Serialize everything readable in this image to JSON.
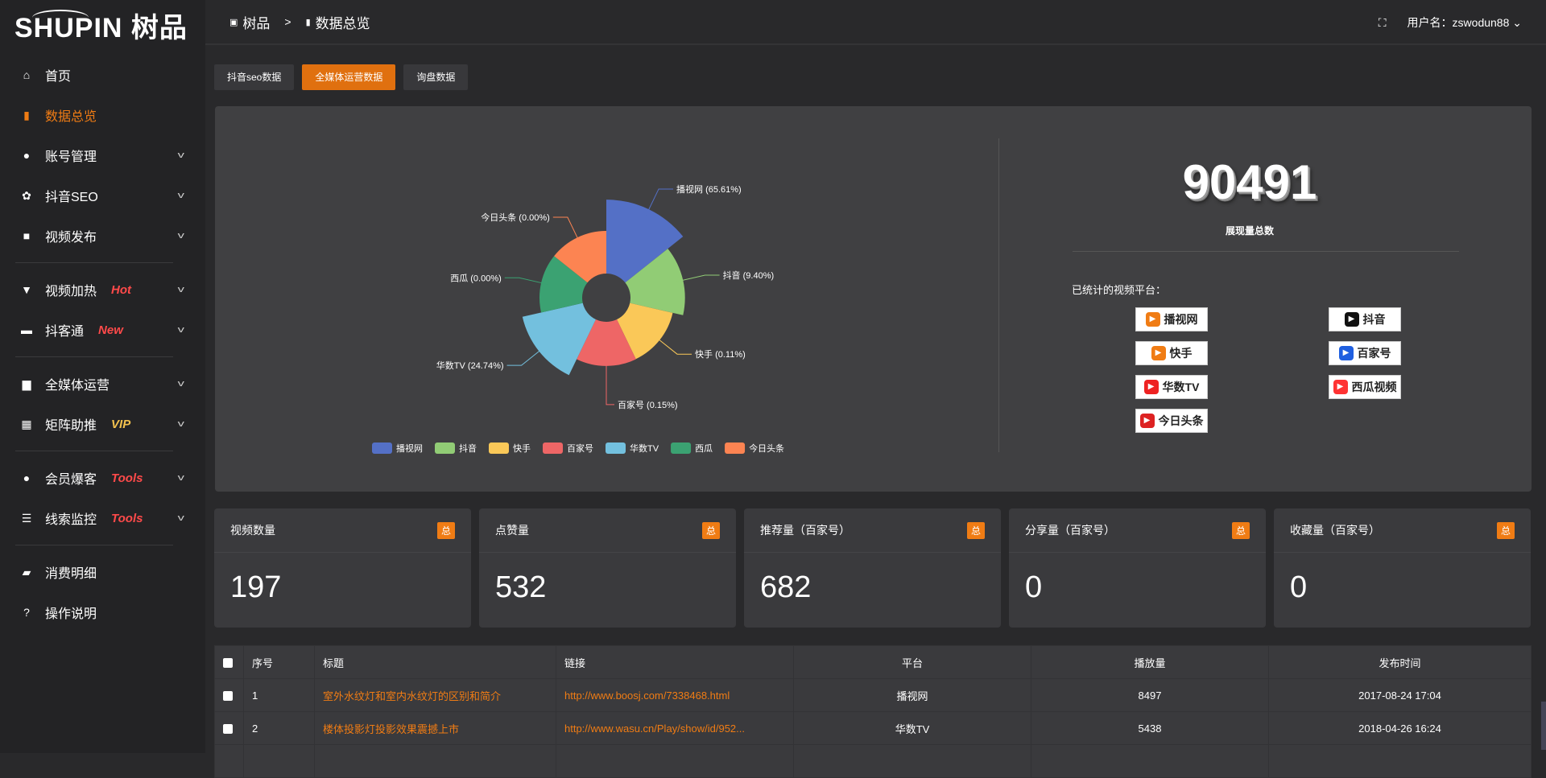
{
  "brand": {
    "logo_text": "SHUPIN 树品"
  },
  "sidebar": {
    "items": [
      {
        "label": "首页",
        "icon": "home-icon",
        "glyph": "⌂"
      },
      {
        "label": "数据总览",
        "icon": "bar-chart-icon",
        "glyph": "▮",
        "active": true
      },
      {
        "label": "账号管理",
        "icon": "user-icon",
        "glyph": "●",
        "chevron": true
      },
      {
        "label": "抖音SEO",
        "icon": "gear-icon",
        "glyph": "✿",
        "chevron": true
      },
      {
        "label": "视频发布",
        "icon": "camera-icon",
        "glyph": "■",
        "chevron": true
      },
      {
        "label": "视频加热",
        "icon": "monitor-icon",
        "glyph": "▼",
        "chevron": true,
        "tag": "Hot"
      },
      {
        "label": "抖客通",
        "icon": "chat-icon",
        "glyph": "▬",
        "chevron": true,
        "tag": "New"
      },
      {
        "label": "全媒体运营",
        "icon": "desktop-icon",
        "glyph": "▆",
        "chevron": true
      },
      {
        "label": "矩阵助推",
        "icon": "grid-icon",
        "glyph": "▦",
        "chevron": true,
        "tag": "VIP"
      },
      {
        "label": "会员爆客",
        "icon": "user-icon",
        "glyph": "●",
        "chevron": true,
        "tag": "Tools"
      },
      {
        "label": "线索监控",
        "icon": "sliders-icon",
        "glyph": "☰",
        "chevron": true,
        "tag": "Tools"
      },
      {
        "label": "消费明细",
        "icon": "wallet-icon",
        "glyph": "▰"
      },
      {
        "label": "操作说明",
        "icon": "help-icon",
        "glyph": "?"
      }
    ]
  },
  "header": {
    "crumbs": [
      "树品",
      "数据总览"
    ],
    "separator": ">",
    "user_label": "用户名：zswodun88"
  },
  "tabs": [
    {
      "label": "抖音seo数据"
    },
    {
      "label": "全媒体运营数据",
      "active": true
    },
    {
      "label": "询盘数据"
    }
  ],
  "overview": {
    "total": "90491",
    "total_label": "展现量总数",
    "platforms_label": "已统计的视频平台：",
    "platform_logos": [
      "播视网",
      "抖音",
      "快手",
      "百家号",
      "华数TV",
      "西瓜视频",
      "今日头条"
    ]
  },
  "chart_data": {
    "type": "pie",
    "rose": true,
    "categories": [
      "播视网",
      "抖音",
      "快手",
      "百家号",
      "华数TV",
      "西瓜",
      "今日头条"
    ],
    "values": [
      65.61,
      9.4,
      0.11,
      0.15,
      24.74,
      0.0,
      0.0
    ],
    "colors": [
      "#5470c6",
      "#91cc75",
      "#fac858",
      "#ee6666",
      "#73c0de",
      "#3ba272",
      "#fc8452"
    ],
    "legend": "bottom"
  },
  "cards": [
    {
      "title": "视频数量",
      "badge": "总",
      "value": "197"
    },
    {
      "title": "点赞量",
      "badge": "总",
      "value": "532"
    },
    {
      "title": "推荐量（百家号）",
      "badge": "总",
      "value": "682"
    },
    {
      "title": "分享量（百家号）",
      "badge": "总",
      "value": "0"
    },
    {
      "title": "收藏量（百家号）",
      "badge": "总",
      "value": "0"
    }
  ],
  "table": {
    "headers": [
      "序号",
      "标题",
      "链接",
      "平台",
      "播放量",
      "发布时间"
    ],
    "rows": [
      [
        "1",
        "室外水纹灯和室内水纹灯的区别和简介",
        "http://www.boosj.com/7338468.html",
        "播视网",
        "8497",
        "2017-08-24 17:04"
      ],
      [
        "2",
        "楼体投影灯投影效果震撼上市",
        "http://www.wasu.cn/Play/show/id/952...",
        "华数TV",
        "5438",
        "2018-04-26 16:24"
      ]
    ]
  }
}
